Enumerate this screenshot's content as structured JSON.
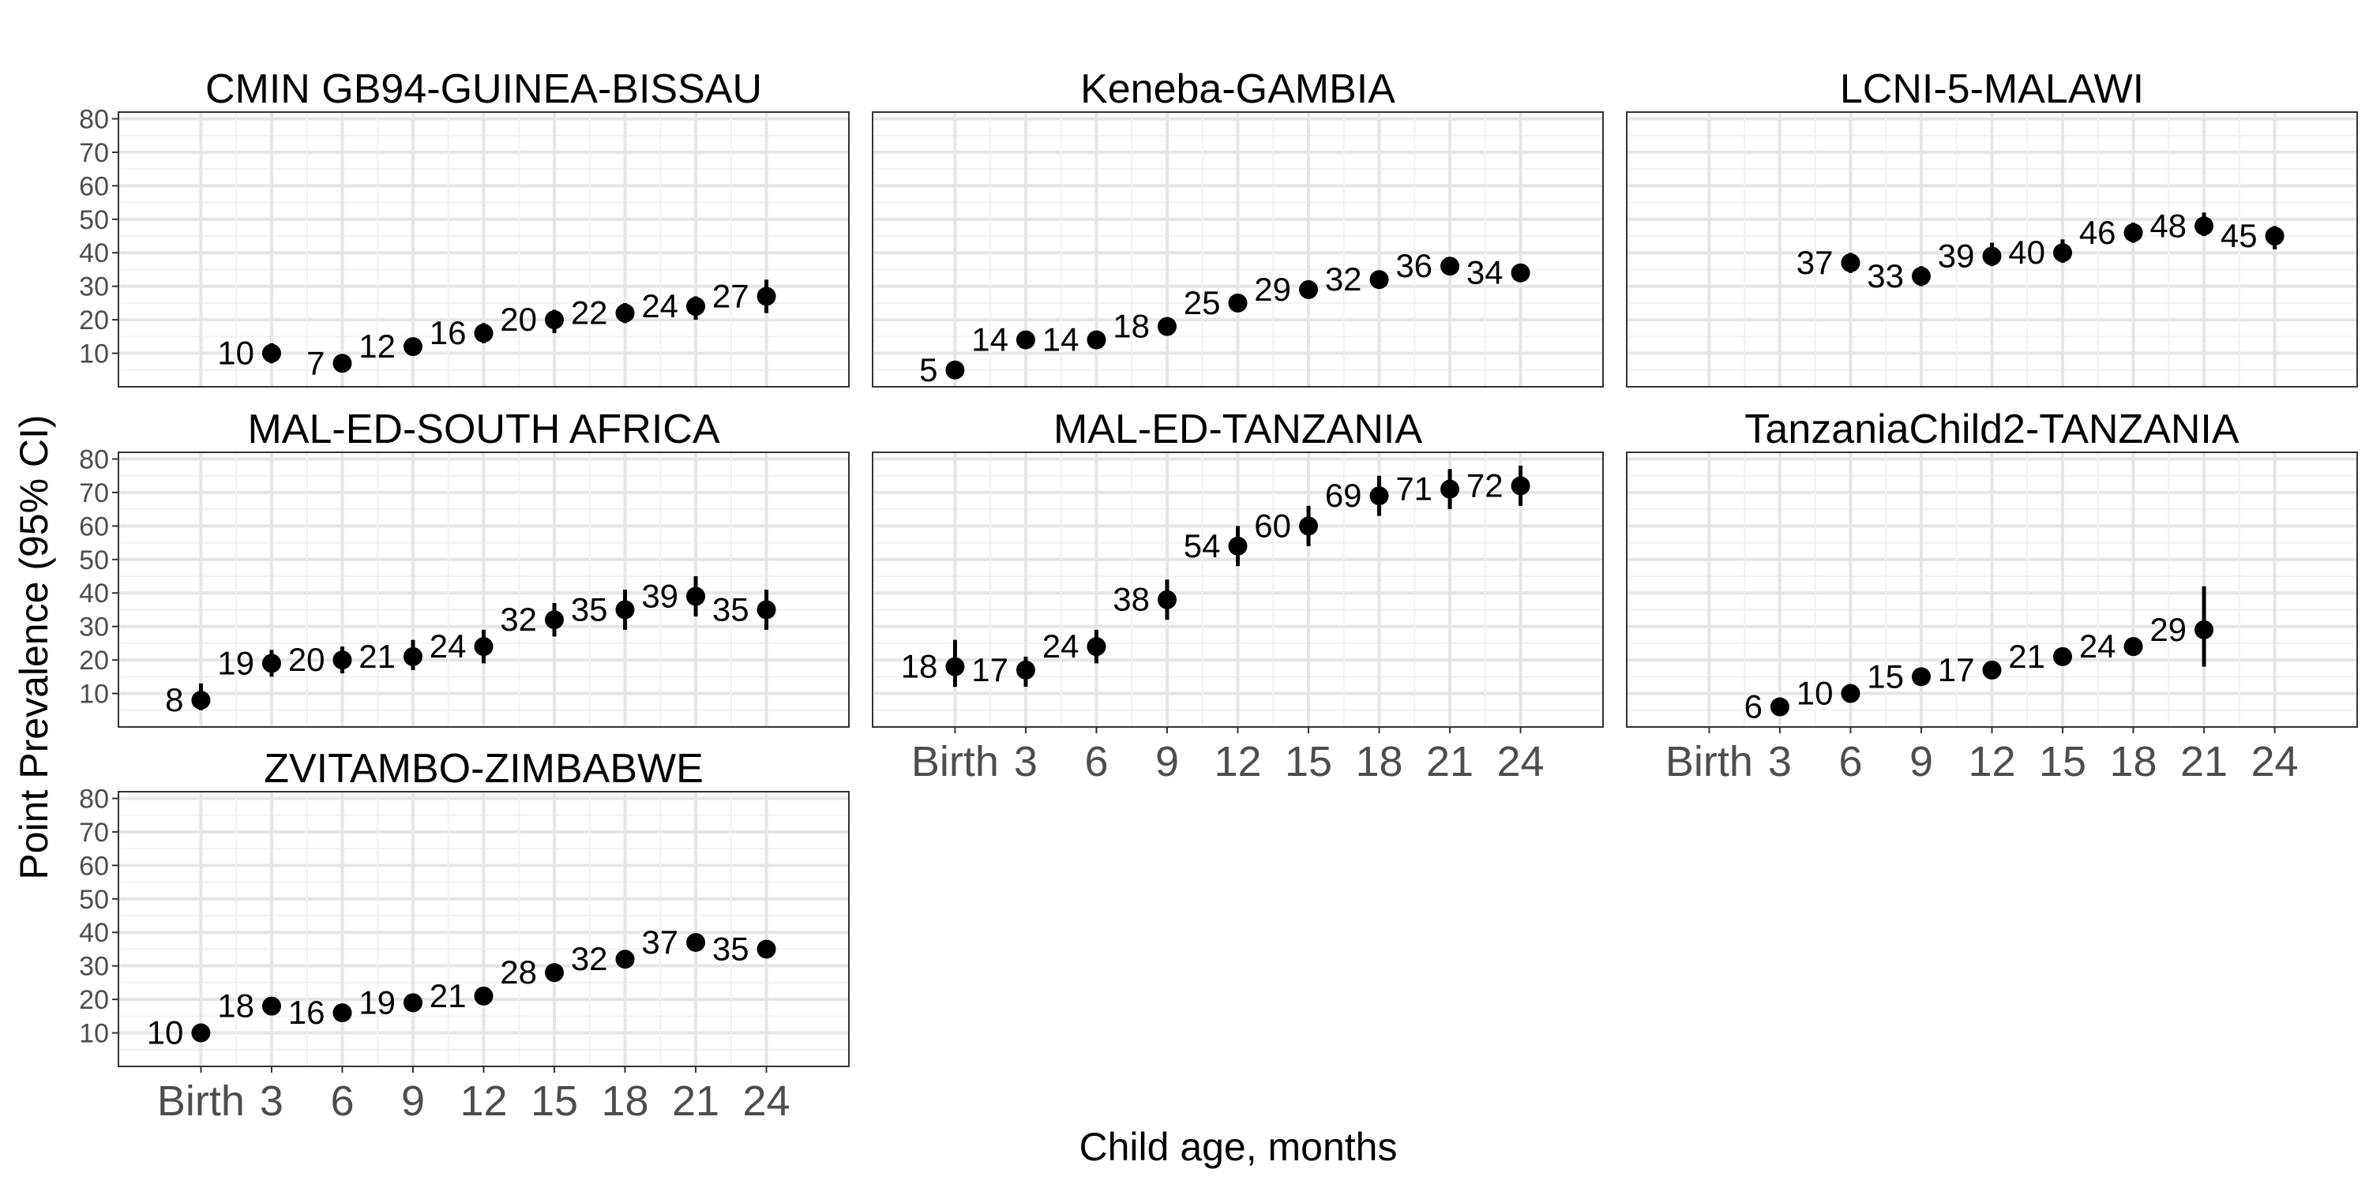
{
  "chart_data": {
    "type": "scatter",
    "xlabel": "Child age, months",
    "ylabel": "Point Prevalence (95% CI)",
    "x_categories": [
      "Birth",
      "3",
      "6",
      "9",
      "12",
      "15",
      "18",
      "21",
      "24"
    ],
    "x_values": [
      0,
      3,
      6,
      9,
      12,
      15,
      18,
      21,
      24
    ],
    "y_ticks": [
      10,
      20,
      30,
      40,
      50,
      60,
      70,
      80
    ],
    "grid": true,
    "error_bars": "95% CI",
    "facets": [
      {
        "title": "CMIN GB94-GUINEA-BISSAU",
        "points": [
          {
            "x": 3,
            "y": 10,
            "lo": 7,
            "hi": 13,
            "label": "10"
          },
          {
            "x": 6,
            "y": 7,
            "lo": 5,
            "hi": 9,
            "label": "7"
          },
          {
            "x": 9,
            "y": 12,
            "lo": 10,
            "hi": 14,
            "label": "12"
          },
          {
            "x": 12,
            "y": 16,
            "lo": 13,
            "hi": 19,
            "label": "16"
          },
          {
            "x": 15,
            "y": 20,
            "lo": 16,
            "hi": 23,
            "label": "20"
          },
          {
            "x": 18,
            "y": 22,
            "lo": 19,
            "hi": 25,
            "label": "22"
          },
          {
            "x": 21,
            "y": 24,
            "lo": 20,
            "hi": 27,
            "label": "24"
          },
          {
            "x": 24,
            "y": 27,
            "lo": 22,
            "hi": 32,
            "label": "27"
          }
        ]
      },
      {
        "title": "Keneba-GAMBIA",
        "points": [
          {
            "x": 0,
            "y": 5,
            "lo": 4,
            "hi": 7,
            "label": "5"
          },
          {
            "x": 3,
            "y": 14,
            "lo": 13,
            "hi": 15,
            "label": "14"
          },
          {
            "x": 6,
            "y": 14,
            "lo": 13,
            "hi": 15,
            "label": "14"
          },
          {
            "x": 9,
            "y": 18,
            "lo": 17,
            "hi": 19,
            "label": "18"
          },
          {
            "x": 12,
            "y": 25,
            "lo": 24,
            "hi": 26,
            "label": "25"
          },
          {
            "x": 15,
            "y": 29,
            "lo": 28,
            "hi": 30,
            "label": "29"
          },
          {
            "x": 18,
            "y": 32,
            "lo": 31,
            "hi": 33,
            "label": "32"
          },
          {
            "x": 21,
            "y": 36,
            "lo": 35,
            "hi": 37,
            "label": "36"
          },
          {
            "x": 24,
            "y": 34,
            "lo": 33,
            "hi": 35,
            "label": "34"
          }
        ]
      },
      {
        "title": "LCNI-5-MALAWI",
        "points": [
          {
            "x": 6,
            "y": 37,
            "lo": 34,
            "hi": 40,
            "label": "37"
          },
          {
            "x": 9,
            "y": 33,
            "lo": 30,
            "hi": 36,
            "label": "33"
          },
          {
            "x": 12,
            "y": 39,
            "lo": 36,
            "hi": 43,
            "label": "39"
          },
          {
            "x": 15,
            "y": 40,
            "lo": 37,
            "hi": 44,
            "label": "40"
          },
          {
            "x": 18,
            "y": 46,
            "lo": 43,
            "hi": 49,
            "label": "46"
          },
          {
            "x": 21,
            "y": 48,
            "lo": 45,
            "hi": 52,
            "label": "48"
          },
          {
            "x": 24,
            "y": 45,
            "lo": 41,
            "hi": 48,
            "label": "45"
          }
        ]
      },
      {
        "title": "MAL-ED-SOUTH AFRICA",
        "points": [
          {
            "x": 0,
            "y": 8,
            "lo": 5,
            "hi": 13,
            "label": "8"
          },
          {
            "x": 3,
            "y": 19,
            "lo": 15,
            "hi": 23,
            "label": "19"
          },
          {
            "x": 6,
            "y": 20,
            "lo": 16,
            "hi": 24,
            "label": "20"
          },
          {
            "x": 9,
            "y": 21,
            "lo": 17,
            "hi": 26,
            "label": "21"
          },
          {
            "x": 12,
            "y": 24,
            "lo": 19,
            "hi": 29,
            "label": "24"
          },
          {
            "x": 15,
            "y": 32,
            "lo": 27,
            "hi": 37,
            "label": "32"
          },
          {
            "x": 18,
            "y": 35,
            "lo": 29,
            "hi": 41,
            "label": "35"
          },
          {
            "x": 21,
            "y": 39,
            "lo": 33,
            "hi": 45,
            "label": "39"
          },
          {
            "x": 24,
            "y": 35,
            "lo": 29,
            "hi": 41,
            "label": "35"
          }
        ]
      },
      {
        "title": "MAL-ED-TANZANIA",
        "points": [
          {
            "x": 0,
            "y": 18,
            "lo": 12,
            "hi": 26,
            "label": "18"
          },
          {
            "x": 3,
            "y": 17,
            "lo": 12,
            "hi": 21,
            "label": "17"
          },
          {
            "x": 6,
            "y": 24,
            "lo": 19,
            "hi": 29,
            "label": "24"
          },
          {
            "x": 9,
            "y": 38,
            "lo": 32,
            "hi": 44,
            "label": "38"
          },
          {
            "x": 12,
            "y": 54,
            "lo": 48,
            "hi": 60,
            "label": "54"
          },
          {
            "x": 15,
            "y": 60,
            "lo": 54,
            "hi": 66,
            "label": "60"
          },
          {
            "x": 18,
            "y": 69,
            "lo": 63,
            "hi": 75,
            "label": "69"
          },
          {
            "x": 21,
            "y": 71,
            "lo": 65,
            "hi": 77,
            "label": "71"
          },
          {
            "x": 24,
            "y": 72,
            "lo": 66,
            "hi": 78,
            "label": "72"
          }
        ]
      },
      {
        "title": "TanzaniaChild2-TANZANIA",
        "points": [
          {
            "x": 3,
            "y": 6,
            "lo": 5,
            "hi": 7,
            "label": "6"
          },
          {
            "x": 6,
            "y": 10,
            "lo": 9,
            "hi": 11,
            "label": "10"
          },
          {
            "x": 9,
            "y": 15,
            "lo": 14,
            "hi": 16,
            "label": "15"
          },
          {
            "x": 12,
            "y": 17,
            "lo": 16,
            "hi": 18,
            "label": "17"
          },
          {
            "x": 15,
            "y": 21,
            "lo": 20,
            "hi": 22,
            "label": "21"
          },
          {
            "x": 18,
            "y": 24,
            "lo": 23,
            "hi": 25,
            "label": "24"
          },
          {
            "x": 21,
            "y": 29,
            "lo": 18,
            "hi": 42,
            "label": "29"
          }
        ]
      },
      {
        "title": "ZVITAMBO-ZIMBABWE",
        "points": [
          {
            "x": 0,
            "y": 10,
            "lo": 9,
            "hi": 11,
            "label": "10"
          },
          {
            "x": 3,
            "y": 18,
            "lo": 17,
            "hi": 19,
            "label": "18"
          },
          {
            "x": 6,
            "y": 16,
            "lo": 15,
            "hi": 17,
            "label": "16"
          },
          {
            "x": 9,
            "y": 19,
            "lo": 18,
            "hi": 20,
            "label": "19"
          },
          {
            "x": 12,
            "y": 21,
            "lo": 20,
            "hi": 22,
            "label": "21"
          },
          {
            "x": 15,
            "y": 28,
            "lo": 27,
            "hi": 29,
            "label": "28"
          },
          {
            "x": 18,
            "y": 32,
            "lo": 31,
            "hi": 33,
            "label": "32"
          },
          {
            "x": 21,
            "y": 37,
            "lo": 36,
            "hi": 38,
            "label": "37"
          },
          {
            "x": 24,
            "y": 35,
            "lo": 34,
            "hi": 36,
            "label": "35"
          }
        ]
      }
    ]
  }
}
